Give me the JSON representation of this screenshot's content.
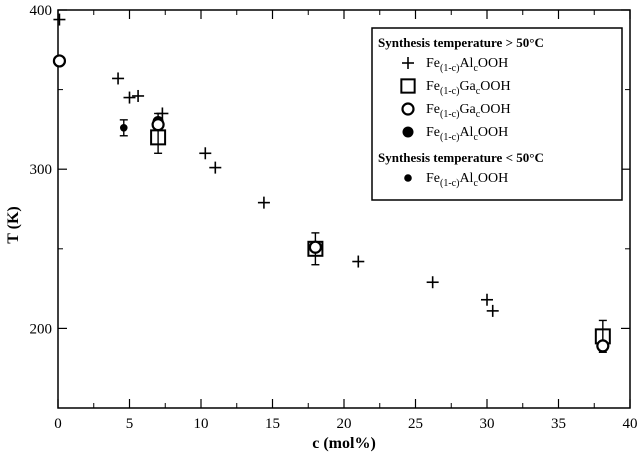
{
  "chart_data": {
    "type": "scatter",
    "xlabel": "c (mol%)",
    "ylabel": "T (K)",
    "xlim": [
      0,
      40
    ],
    "ylim": [
      150,
      400
    ],
    "x_ticks": [
      "0",
      "5",
      "10",
      "15",
      "20",
      "25",
      "30",
      "35",
      "40"
    ],
    "y_ticks": [
      "200",
      "300",
      "400"
    ],
    "grid": false,
    "legend_position": "top-right",
    "legend": {
      "heading_above": "Synthesis temperature > 50°C",
      "heading_below": "Synthesis temperature < 50°C"
    },
    "series": [
      {
        "group": "above",
        "marker": "plus",
        "label": {
          "pre": "Fe",
          "sub1": "(1-c)",
          "mid": "Al",
          "sub2": "c",
          "post": "OOH"
        },
        "points": [
          {
            "x": 0.1,
            "y": 394
          },
          {
            "x": 4.2,
            "y": 357
          },
          {
            "x": 5.0,
            "y": 345
          },
          {
            "x": 5.6,
            "y": 346
          },
          {
            "x": 7.3,
            "y": 335
          },
          {
            "x": 10.3,
            "y": 310
          },
          {
            "x": 11.0,
            "y": 301
          },
          {
            "x": 14.4,
            "y": 279
          },
          {
            "x": 21.0,
            "y": 242
          },
          {
            "x": 26.2,
            "y": 229
          },
          {
            "x": 30.0,
            "y": 218
          },
          {
            "x": 30.4,
            "y": 211
          }
        ]
      },
      {
        "group": "above",
        "marker": "square",
        "label": {
          "pre": "Fe",
          "sub1": "(1-c)",
          "mid": "Ga",
          "sub2": "c",
          "post": "OOH"
        },
        "points": [
          {
            "x": 7.0,
            "y": 320,
            "err": 10
          },
          {
            "x": 18.0,
            "y": 250,
            "err": 10
          },
          {
            "x": 38.1,
            "y": 195,
            "err": 10
          }
        ]
      },
      {
        "group": "above",
        "marker": "circle-open",
        "label": {
          "pre": "Fe",
          "sub1": "(1-c)",
          "mid": "Ga",
          "sub2": "c",
          "post": "OOH"
        },
        "points": [
          {
            "x": 0.1,
            "y": 368
          },
          {
            "x": 7.0,
            "y": 328
          },
          {
            "x": 18.0,
            "y": 251
          },
          {
            "x": 38.1,
            "y": 189
          }
        ]
      },
      {
        "group": "above",
        "marker": "circle-filled",
        "label": {
          "pre": "Fe",
          "sub1": "(1-c)",
          "mid": "Al",
          "sub2": "c",
          "post": "OOH"
        },
        "points": [
          {
            "x": 7.0,
            "y": 330,
            "err": 5
          }
        ]
      },
      {
        "group": "below",
        "marker": "dot",
        "label": {
          "pre": "Fe",
          "sub1": "(1-c)",
          "mid": "Al",
          "sub2": "c",
          "post": "OOH"
        },
        "points": [
          {
            "x": 4.6,
            "y": 326,
            "err": 5
          }
        ]
      }
    ]
  }
}
